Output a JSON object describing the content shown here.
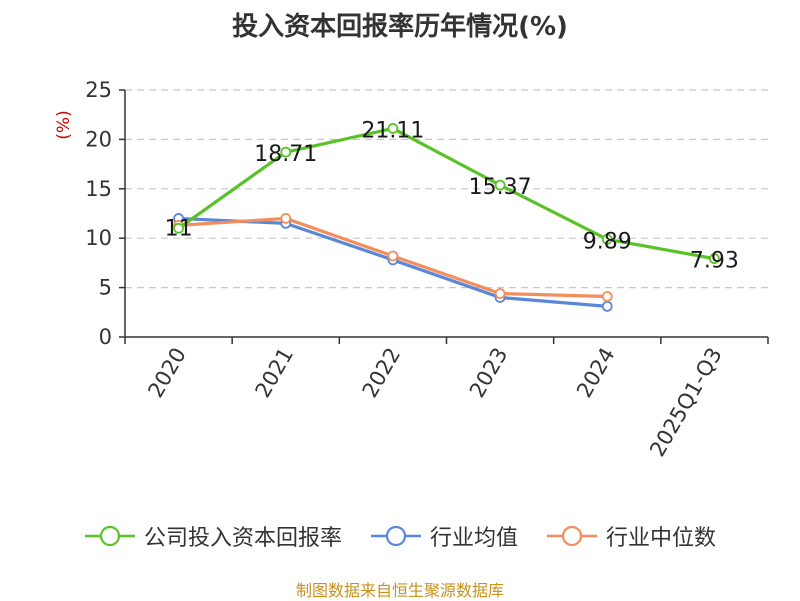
{
  "chart_data": {
    "type": "line",
    "title": "投入资本回报率历年情况(%)",
    "ylabel": "(%)",
    "xlabel": "",
    "categories": [
      "2020",
      "2021",
      "2022",
      "2023",
      "2024",
      "2025Q1-Q3"
    ],
    "ylim": [
      0,
      25
    ],
    "yticks": [
      0,
      5,
      10,
      15,
      20,
      25
    ],
    "grid": true,
    "legend_position": "bottom",
    "series": [
      {
        "name": "公司投入资本回报率",
        "color": "#5ac229",
        "values": [
          11,
          18.71,
          21.11,
          15.37,
          9.89,
          7.93
        ],
        "labels": [
          "11",
          "18.71",
          "21.11",
          "15.37",
          "9.89",
          "7.93"
        ]
      },
      {
        "name": "行业均值",
        "color": "#5b87d8",
        "values": [
          12.0,
          11.5,
          7.8,
          4.0,
          3.1,
          null
        ]
      },
      {
        "name": "行业中位数",
        "color": "#f28e5d",
        "values": [
          11.3,
          12.0,
          8.2,
          4.4,
          4.1,
          null
        ]
      }
    ]
  },
  "footer": {
    "source": "制图数据来自恒生聚源数据库"
  }
}
